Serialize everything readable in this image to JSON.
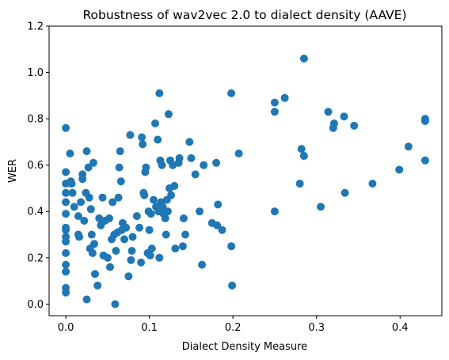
{
  "chart_data": {
    "type": "scatter",
    "title": "Robustness of wav2vec 2.0 to dialect density (AAVE)",
    "xlabel": "Dialect Density Measure",
    "ylabel": "WER",
    "xlim": [
      -0.02,
      0.45
    ],
    "ylim": [
      -0.05,
      1.2
    ],
    "xticks": [
      "0.0",
      "0.1",
      "0.2",
      "0.3",
      "0.4"
    ],
    "yticks": [
      "0.0",
      "0.2",
      "0.4",
      "0.6",
      "0.8",
      "1.0",
      "1.2"
    ],
    "grid": false,
    "marker_color": "#1f77b4",
    "series": [
      {
        "points": [
          [
            0.0,
            0.76
          ],
          [
            0.0,
            0.57
          ],
          [
            0.0,
            0.52
          ],
          [
            0.0,
            0.48
          ],
          [
            0.0,
            0.44
          ],
          [
            0.0,
            0.39
          ],
          [
            0.0,
            0.33
          ],
          [
            0.0,
            0.32
          ],
          [
            0.0,
            0.29
          ],
          [
            0.0,
            0.27
          ],
          [
            0.0,
            0.22
          ],
          [
            0.0,
            0.17
          ],
          [
            0.0,
            0.14
          ],
          [
            0.0,
            0.07
          ],
          [
            0.0,
            0.05
          ],
          [
            0.005,
            0.65
          ],
          [
            0.006,
            0.53
          ],
          [
            0.007,
            0.52
          ],
          [
            0.008,
            0.48
          ],
          [
            0.01,
            0.42
          ],
          [
            0.015,
            0.38
          ],
          [
            0.015,
            0.3
          ],
          [
            0.016,
            0.29
          ],
          [
            0.018,
            0.44
          ],
          [
            0.02,
            0.56
          ],
          [
            0.02,
            0.54
          ],
          [
            0.022,
            0.36
          ],
          [
            0.024,
            0.48
          ],
          [
            0.025,
            0.66
          ],
          [
            0.025,
            0.02
          ],
          [
            0.027,
            0.59
          ],
          [
            0.028,
            0.46
          ],
          [
            0.029,
            0.24
          ],
          [
            0.03,
            0.41
          ],
          [
            0.031,
            0.3
          ],
          [
            0.032,
            0.22
          ],
          [
            0.033,
            0.61
          ],
          [
            0.034,
            0.26
          ],
          [
            0.035,
            0.13
          ],
          [
            0.038,
            0.08
          ],
          [
            0.04,
            0.37
          ],
          [
            0.042,
            0.34
          ],
          [
            0.044,
            0.46
          ],
          [
            0.045,
            0.21
          ],
          [
            0.047,
            0.36
          ],
          [
            0.05,
            0.2
          ],
          [
            0.052,
            0.37
          ],
          [
            0.053,
            0.16
          ],
          [
            0.055,
            0.28
          ],
          [
            0.056,
            0.44
          ],
          [
            0.058,
            0.3
          ],
          [
            0.059,
            0.0
          ],
          [
            0.06,
            0.23
          ],
          [
            0.062,
            0.31
          ],
          [
            0.063,
            0.46
          ],
          [
            0.064,
            0.59
          ],
          [
            0.065,
            0.66
          ],
          [
            0.066,
            0.53
          ],
          [
            0.067,
            0.32
          ],
          [
            0.068,
            0.35
          ],
          [
            0.07,
            0.28
          ],
          [
            0.072,
            0.33
          ],
          [
            0.075,
            0.12
          ],
          [
            0.077,
            0.73
          ],
          [
            0.078,
            0.19
          ],
          [
            0.079,
            0.23
          ],
          [
            0.08,
            0.29
          ],
          [
            0.085,
            0.38
          ],
          [
            0.088,
            0.33
          ],
          [
            0.09,
            0.18
          ],
          [
            0.091,
            0.72
          ],
          [
            0.092,
            0.69
          ],
          [
            0.093,
            0.48
          ],
          [
            0.094,
            0.47
          ],
          [
            0.095,
            0.57
          ],
          [
            0.096,
            0.59
          ],
          [
            0.098,
            0.22
          ],
          [
            0.099,
            0.4
          ],
          [
            0.1,
            0.32
          ],
          [
            0.101,
            0.21
          ],
          [
            0.102,
            0.39
          ],
          [
            0.103,
            0.24
          ],
          [
            0.105,
            0.45
          ],
          [
            0.107,
            0.78
          ],
          [
            0.108,
            0.42
          ],
          [
            0.11,
            0.71
          ],
          [
            0.111,
            0.4
          ],
          [
            0.112,
            0.91
          ],
          [
            0.112,
            0.2
          ],
          [
            0.113,
            0.62
          ],
          [
            0.114,
            0.44
          ],
          [
            0.115,
            0.6
          ],
          [
            0.116,
            0.42
          ],
          [
            0.117,
            0.39
          ],
          [
            0.118,
            0.39
          ],
          [
            0.119,
            0.37
          ],
          [
            0.12,
            0.3
          ],
          [
            0.121,
            0.45
          ],
          [
            0.122,
            0.4
          ],
          [
            0.123,
            0.82
          ],
          [
            0.124,
            0.5
          ],
          [
            0.125,
            0.62
          ],
          [
            0.126,
            0.47
          ],
          [
            0.128,
            0.6
          ],
          [
            0.13,
            0.51
          ],
          [
            0.131,
            0.24
          ],
          [
            0.135,
            0.61
          ],
          [
            0.136,
            0.63
          ],
          [
            0.14,
            0.25
          ],
          [
            0.141,
            0.37
          ],
          [
            0.143,
            0.3
          ],
          [
            0.148,
            0.7
          ],
          [
            0.15,
            0.63
          ],
          [
            0.155,
            0.56
          ],
          [
            0.16,
            0.4
          ],
          [
            0.163,
            0.17
          ],
          [
            0.165,
            0.6
          ],
          [
            0.175,
            0.35
          ],
          [
            0.18,
            0.61
          ],
          [
            0.181,
            0.34
          ],
          [
            0.182,
            0.43
          ],
          [
            0.187,
            0.32
          ],
          [
            0.198,
            0.91
          ],
          [
            0.198,
            0.25
          ],
          [
            0.199,
            0.08
          ],
          [
            0.207,
            0.65
          ],
          [
            0.25,
            0.87
          ],
          [
            0.25,
            0.83
          ],
          [
            0.25,
            0.4
          ],
          [
            0.262,
            0.89
          ],
          [
            0.28,
            0.52
          ],
          [
            0.282,
            0.67
          ],
          [
            0.285,
            1.06
          ],
          [
            0.285,
            0.64
          ],
          [
            0.305,
            0.42
          ],
          [
            0.314,
            0.83
          ],
          [
            0.32,
            0.76
          ],
          [
            0.321,
            0.78
          ],
          [
            0.333,
            0.81
          ],
          [
            0.334,
            0.48
          ],
          [
            0.345,
            0.77
          ],
          [
            0.367,
            0.52
          ],
          [
            0.399,
            0.58
          ],
          [
            0.41,
            0.68
          ],
          [
            0.43,
            0.8
          ],
          [
            0.43,
            0.79
          ],
          [
            0.43,
            0.62
          ]
        ]
      }
    ]
  }
}
